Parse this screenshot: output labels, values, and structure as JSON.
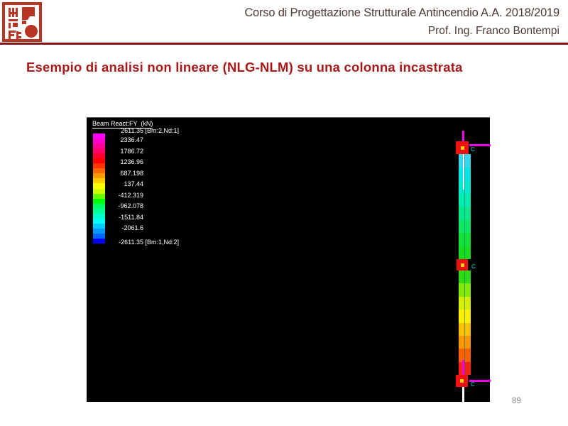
{
  "header": {
    "course_title": "Corso di Progettazione Strutturale Antincendio A.A. 2018/2019",
    "professor": "Prof. Ing. Franco Bontempi",
    "text_color": "#4e3a34",
    "rule_color": "#851712",
    "stamp_color": "#b93523"
  },
  "slide": {
    "title": "Esempio di analisi non lineare (NLG-NLM) su una colonna incastrata",
    "title_color": "#a81a1a",
    "page_number": "89"
  },
  "viewer": {
    "background": "#000000",
    "legend": {
      "title": "Beam React:FY  (kN)",
      "colorbar_colors": [
        "#ff00ff",
        "#ff00cc",
        "#ff0099",
        "#ff0066",
        "#ff0033",
        "#ff0000",
        "#ff3300",
        "#ff6600",
        "#ff9900",
        "#ffcc00",
        "#ffff00",
        "#ccff00",
        "#66ff00",
        "#00ff00",
        "#00ff66",
        "#00ff99",
        "#00ffcc",
        "#00ffff",
        "#00ccff",
        "#0099ff",
        "#0066ff",
        "#0000ff"
      ],
      "entries": [
        {
          "value": "2611.35",
          "tag": " [Bm:2,Nd:1]"
        },
        {
          "value": "2336.47",
          "tag": ""
        },
        {
          "value": "1786.72",
          "tag": ""
        },
        {
          "value": "1236.96",
          "tag": ""
        },
        {
          "value": "687.198",
          "tag": ""
        },
        {
          "value": "137.44",
          "tag": ""
        },
        {
          "value": "-412.319",
          "tag": ""
        },
        {
          "value": "-962.078",
          "tag": ""
        },
        {
          "value": "-1511.84",
          "tag": ""
        },
        {
          "value": "-2061.6",
          "tag": ""
        },
        {
          "value": "-2611.35",
          "tag": " [Bm:1,Nd:2]"
        }
      ]
    },
    "column": {
      "upper_bands": [
        "#38d6ee",
        "#00e6e6",
        "#00ead2",
        "#00ecb0",
        "#08e88a",
        "#0ee562",
        "#14e13a",
        "#1adc1e"
      ],
      "lower_bands": [
        "#2eda16",
        "#84e800",
        "#d6ee00",
        "#ffee00",
        "#ffc000",
        "#ff9600",
        "#ff6000",
        "#ff2212"
      ],
      "node_color": "#ee1111",
      "node_center_color": "#ffd400",
      "load_arrow_color": "#ee00ee",
      "support_line_color": "#ffffff",
      "node_labels": [
        "C",
        "C",
        "C"
      ]
    }
  }
}
